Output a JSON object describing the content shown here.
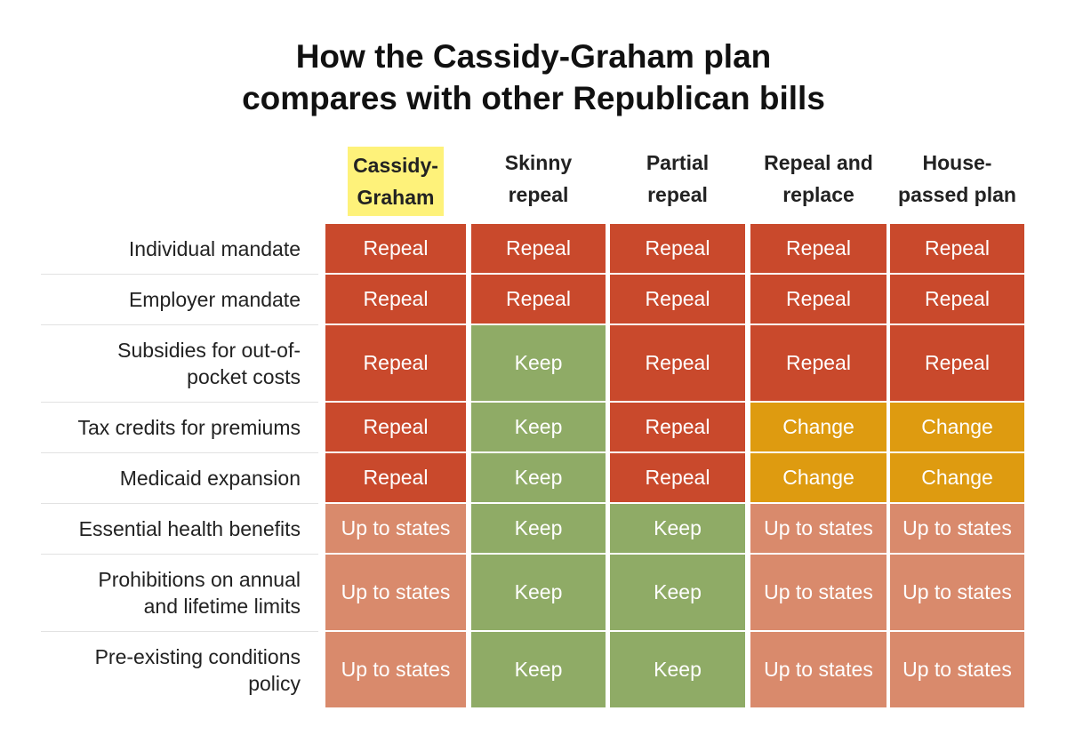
{
  "title": {
    "line1": "How the Cassidy-Graham plan",
    "line2": "compares with other Republican bills"
  },
  "colors": {
    "Repeal": "#c9492c",
    "Keep": "#8fab66",
    "Change": "#de9b10",
    "Up to states": "#d98a6c",
    "highlight": "#fef27a"
  },
  "chart_data": {
    "type": "table",
    "title": "How the Cassidy-Graham plan compares with other Republican bills",
    "columns": [
      {
        "line1": "Cassidy-",
        "line2": "Graham",
        "highlighted": true
      },
      {
        "line1": "Skinny",
        "line2": "repeal",
        "highlighted": false
      },
      {
        "line1": "Partial",
        "line2": "repeal",
        "highlighted": false
      },
      {
        "line1": "Repeal and",
        "line2": "replace",
        "highlighted": false
      },
      {
        "line1": "House-",
        "line2": "passed plan",
        "highlighted": false
      }
    ],
    "rows": [
      {
        "label": [
          "Individual mandate"
        ],
        "values": [
          "Repeal",
          "Repeal",
          "Repeal",
          "Repeal",
          "Repeal"
        ]
      },
      {
        "label": [
          "Employer mandate"
        ],
        "values": [
          "Repeal",
          "Repeal",
          "Repeal",
          "Repeal",
          "Repeal"
        ]
      },
      {
        "label": [
          "Subsidies for out-of-",
          "pocket costs"
        ],
        "values": [
          "Repeal",
          "Keep",
          "Repeal",
          "Repeal",
          "Repeal"
        ]
      },
      {
        "label": [
          "Tax credits for premiums"
        ],
        "values": [
          "Repeal",
          "Keep",
          "Repeal",
          "Change",
          "Change"
        ]
      },
      {
        "label": [
          "Medicaid expansion"
        ],
        "values": [
          "Repeal",
          "Keep",
          "Repeal",
          "Change",
          "Change"
        ]
      },
      {
        "label": [
          "Essential health benefits"
        ],
        "values": [
          "Up to states",
          "Keep",
          "Keep",
          "Up to states",
          "Up to states"
        ]
      },
      {
        "label": [
          "Prohibitions on annual",
          "and lifetime limits"
        ],
        "values": [
          "Up to states",
          "Keep",
          "Keep",
          "Up to states",
          "Up to states"
        ]
      },
      {
        "label": [
          "Pre-existing conditions",
          "policy"
        ],
        "values": [
          "Up to states",
          "Keep",
          "Keep",
          "Up to states",
          "Up to states"
        ]
      }
    ]
  }
}
